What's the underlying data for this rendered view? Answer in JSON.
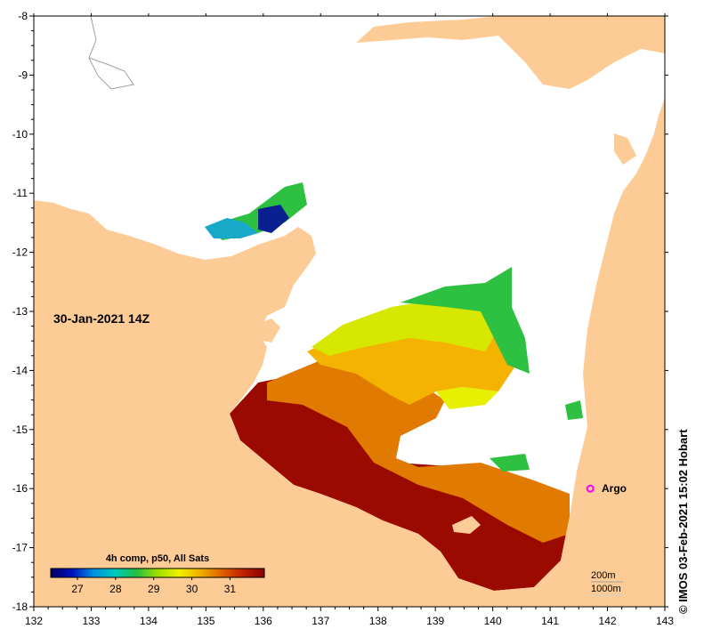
{
  "map": {
    "date_label": "30-Jan-2021 14Z",
    "lon_ticks": [
      "132",
      "133",
      "134",
      "135",
      "136",
      "137",
      "138",
      "139",
      "140",
      "141",
      "142",
      "143"
    ],
    "lat_ticks": [
      "-8",
      "-9",
      "-10",
      "-11",
      "-12",
      "-13",
      "-14",
      "-15",
      "-16",
      "-17",
      "-18"
    ],
    "colorbar": {
      "title": "4h comp, p50, All Sats",
      "tick_labels": [
        "27",
        "28",
        "29",
        "30",
        "31"
      ],
      "range": [
        26.3,
        31.9
      ]
    },
    "argo": {
      "label": "Argo",
      "lon": 141.7,
      "lat": -16.0,
      "color": "#ff00ff"
    },
    "scale": {
      "contour_1": "200m",
      "contour_2": "1000m"
    },
    "credit": "© IMOS 03-Feb-2021 15:02 Hobart",
    "colors": {
      "land": "#fdcb95",
      "water_no_data": "#ffffff",
      "sst_hot": "#9b0a00",
      "sst_warm": "#e07a00",
      "sst_mid": "#f3b300",
      "sst_yellow": "#e7f000",
      "sst_green": "#2ec040",
      "sst_cyan": "#18a8c8",
      "sst_blue": "#0a2090"
    }
  }
}
